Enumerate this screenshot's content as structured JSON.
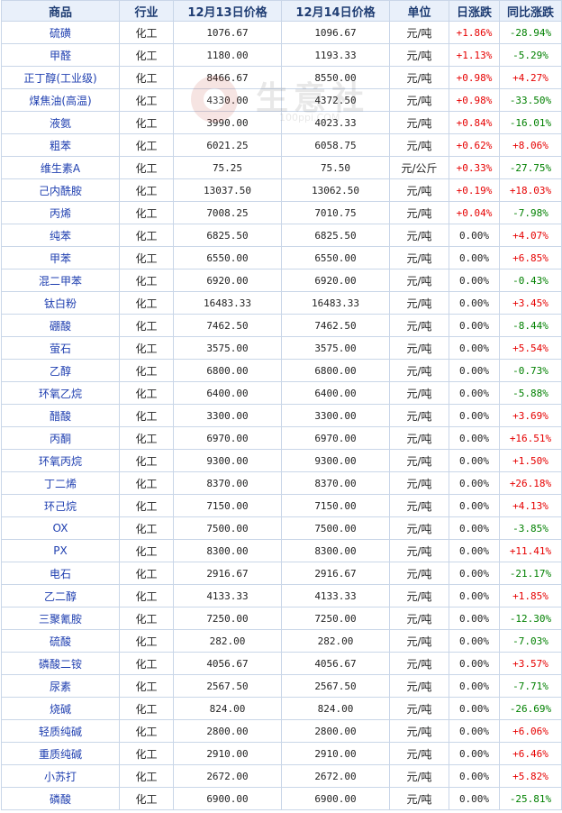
{
  "watermark": {
    "text": "生意社",
    "url": "100ppi.COM"
  },
  "headers": [
    "商品",
    "行业",
    "12月13日价格",
    "12月14日价格",
    "单位",
    "日涨跌",
    "同比涨跌"
  ],
  "rows": [
    [
      "硫磺",
      "化工",
      "1076.67",
      "1096.67",
      "元/吨",
      "+1.86%",
      "-28.94%"
    ],
    [
      "甲醛",
      "化工",
      "1180.00",
      "1193.33",
      "元/吨",
      "+1.13%",
      "-5.29%"
    ],
    [
      "正丁醇(工业级)",
      "化工",
      "8466.67",
      "8550.00",
      "元/吨",
      "+0.98%",
      "+4.27%"
    ],
    [
      "煤焦油(高温)",
      "化工",
      "4330.00",
      "4372.50",
      "元/吨",
      "+0.98%",
      "-33.50%"
    ],
    [
      "液氨",
      "化工",
      "3990.00",
      "4023.33",
      "元/吨",
      "+0.84%",
      "-16.01%"
    ],
    [
      "粗苯",
      "化工",
      "6021.25",
      "6058.75",
      "元/吨",
      "+0.62%",
      "+8.06%"
    ],
    [
      "维生素A",
      "化工",
      "75.25",
      "75.50",
      "元/公斤",
      "+0.33%",
      "-27.75%"
    ],
    [
      "己内酰胺",
      "化工",
      "13037.50",
      "13062.50",
      "元/吨",
      "+0.19%",
      "+18.03%"
    ],
    [
      "丙烯",
      "化工",
      "7008.25",
      "7010.75",
      "元/吨",
      "+0.04%",
      "-7.98%"
    ],
    [
      "纯苯",
      "化工",
      "6825.50",
      "6825.50",
      "元/吨",
      "0.00%",
      "+4.07%"
    ],
    [
      "甲苯",
      "化工",
      "6550.00",
      "6550.00",
      "元/吨",
      "0.00%",
      "+6.85%"
    ],
    [
      "混二甲苯",
      "化工",
      "6920.00",
      "6920.00",
      "元/吨",
      "0.00%",
      "-0.43%"
    ],
    [
      "钛白粉",
      "化工",
      "16483.33",
      "16483.33",
      "元/吨",
      "0.00%",
      "+3.45%"
    ],
    [
      "硼酸",
      "化工",
      "7462.50",
      "7462.50",
      "元/吨",
      "0.00%",
      "-8.44%"
    ],
    [
      "萤石",
      "化工",
      "3575.00",
      "3575.00",
      "元/吨",
      "0.00%",
      "+5.54%"
    ],
    [
      "乙醇",
      "化工",
      "6800.00",
      "6800.00",
      "元/吨",
      "0.00%",
      "-0.73%"
    ],
    [
      "环氧乙烷",
      "化工",
      "6400.00",
      "6400.00",
      "元/吨",
      "0.00%",
      "-5.88%"
    ],
    [
      "醋酸",
      "化工",
      "3300.00",
      "3300.00",
      "元/吨",
      "0.00%",
      "+3.69%"
    ],
    [
      "丙酮",
      "化工",
      "6970.00",
      "6970.00",
      "元/吨",
      "0.00%",
      "+16.51%"
    ],
    [
      "环氧丙烷",
      "化工",
      "9300.00",
      "9300.00",
      "元/吨",
      "0.00%",
      "+1.50%"
    ],
    [
      "丁二烯",
      "化工",
      "8370.00",
      "8370.00",
      "元/吨",
      "0.00%",
      "+26.18%"
    ],
    [
      "环己烷",
      "化工",
      "7150.00",
      "7150.00",
      "元/吨",
      "0.00%",
      "+4.13%"
    ],
    [
      "OX",
      "化工",
      "7500.00",
      "7500.00",
      "元/吨",
      "0.00%",
      "-3.85%"
    ],
    [
      "PX",
      "化工",
      "8300.00",
      "8300.00",
      "元/吨",
      "0.00%",
      "+11.41%"
    ],
    [
      "电石",
      "化工",
      "2916.67",
      "2916.67",
      "元/吨",
      "0.00%",
      "-21.17%"
    ],
    [
      "乙二醇",
      "化工",
      "4133.33",
      "4133.33",
      "元/吨",
      "0.00%",
      "+1.85%"
    ],
    [
      "三聚氰胺",
      "化工",
      "7250.00",
      "7250.00",
      "元/吨",
      "0.00%",
      "-12.30%"
    ],
    [
      "硫酸",
      "化工",
      "282.00",
      "282.00",
      "元/吨",
      "0.00%",
      "-7.03%"
    ],
    [
      "磷酸二铵",
      "化工",
      "4056.67",
      "4056.67",
      "元/吨",
      "0.00%",
      "+3.57%"
    ],
    [
      "尿素",
      "化工",
      "2567.50",
      "2567.50",
      "元/吨",
      "0.00%",
      "-7.71%"
    ],
    [
      "烧碱",
      "化工",
      "824.00",
      "824.00",
      "元/吨",
      "0.00%",
      "-26.69%"
    ],
    [
      "轻质纯碱",
      "化工",
      "2800.00",
      "2800.00",
      "元/吨",
      "0.00%",
      "+6.06%"
    ],
    [
      "重质纯碱",
      "化工",
      "2910.00",
      "2910.00",
      "元/吨",
      "0.00%",
      "+6.46%"
    ],
    [
      "小苏打",
      "化工",
      "2672.00",
      "2672.00",
      "元/吨",
      "0.00%",
      "+5.82%"
    ],
    [
      "磷酸",
      "化工",
      "6900.00",
      "6900.00",
      "元/吨",
      "0.00%",
      "-25.81%"
    ]
  ],
  "colors": {
    "up": "#e60000",
    "down": "#008000",
    "name_link": "#1f3fb0",
    "header_bg": "#e9f0fa",
    "border": "#c9d6e8"
  }
}
